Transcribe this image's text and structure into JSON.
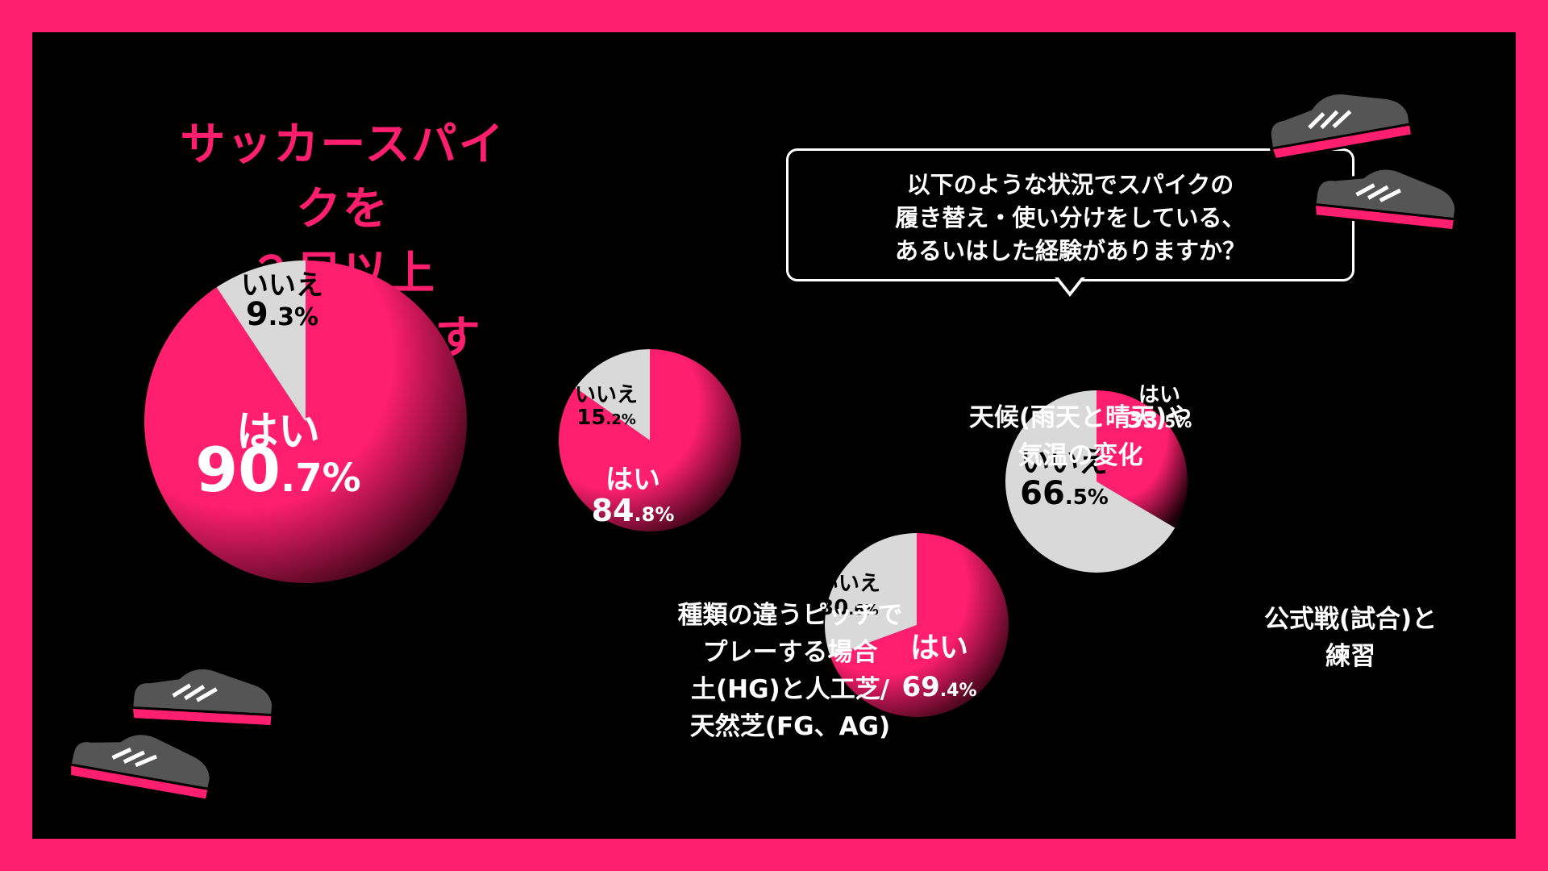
{
  "main_question": [
    "サッカースパイクを",
    "２足以上",
    "持っていますか？"
  ],
  "sub_question": [
    "以下のような状況でスパイクの",
    "履き替え・使い分けをしている、",
    "あるいはした経験がありますか？"
  ],
  "captions": {
    "pitch": "種類の違うピッチで\nプレーする場合\n土(HG)と人工芝/\n天然芝(FG、AG)",
    "weather": "天候(雨天と晴天)や\n気温の変化",
    "official": "公式戦(試合)と\n練習"
  },
  "colors": {
    "yes": "#ff1f6e",
    "no": "#d9d9d9",
    "background": "#000000",
    "frame": "#ff1f6e"
  },
  "icons": [
    "soccer-cleat-icon",
    "soccer-cleat-icon"
  ],
  "chart_data": [
    {
      "type": "pie",
      "slices": [
        {
          "label": "はい",
          "value": 90.7,
          "display_int": "90",
          "display_dec": ".7%"
        },
        {
          "label": "いいえ",
          "value": 9.3,
          "display_int": "9",
          "display_dec": ".3%"
        }
      ]
    },
    {
      "type": "pie",
      "slices": [
        {
          "label": "はい",
          "value": 84.8,
          "display_int": "84",
          "display_dec": ".8%"
        },
        {
          "label": "いいえ",
          "value": 15.2,
          "display_int": "15",
          "display_dec": ".2%"
        }
      ]
    },
    {
      "type": "pie",
      "slices": [
        {
          "label": "はい",
          "value": 69.4,
          "display_int": "69",
          "display_dec": ".4%"
        },
        {
          "label": "いいえ",
          "value": 30.6,
          "display_int": "30",
          "display_dec": ".6%"
        }
      ]
    },
    {
      "type": "pie",
      "slices": [
        {
          "label": "はい",
          "value": 33.5,
          "display_int": "33",
          "display_dec": ".5%"
        },
        {
          "label": "いいえ",
          "value": 66.5,
          "display_int": "66",
          "display_dec": ".5%"
        }
      ]
    }
  ]
}
